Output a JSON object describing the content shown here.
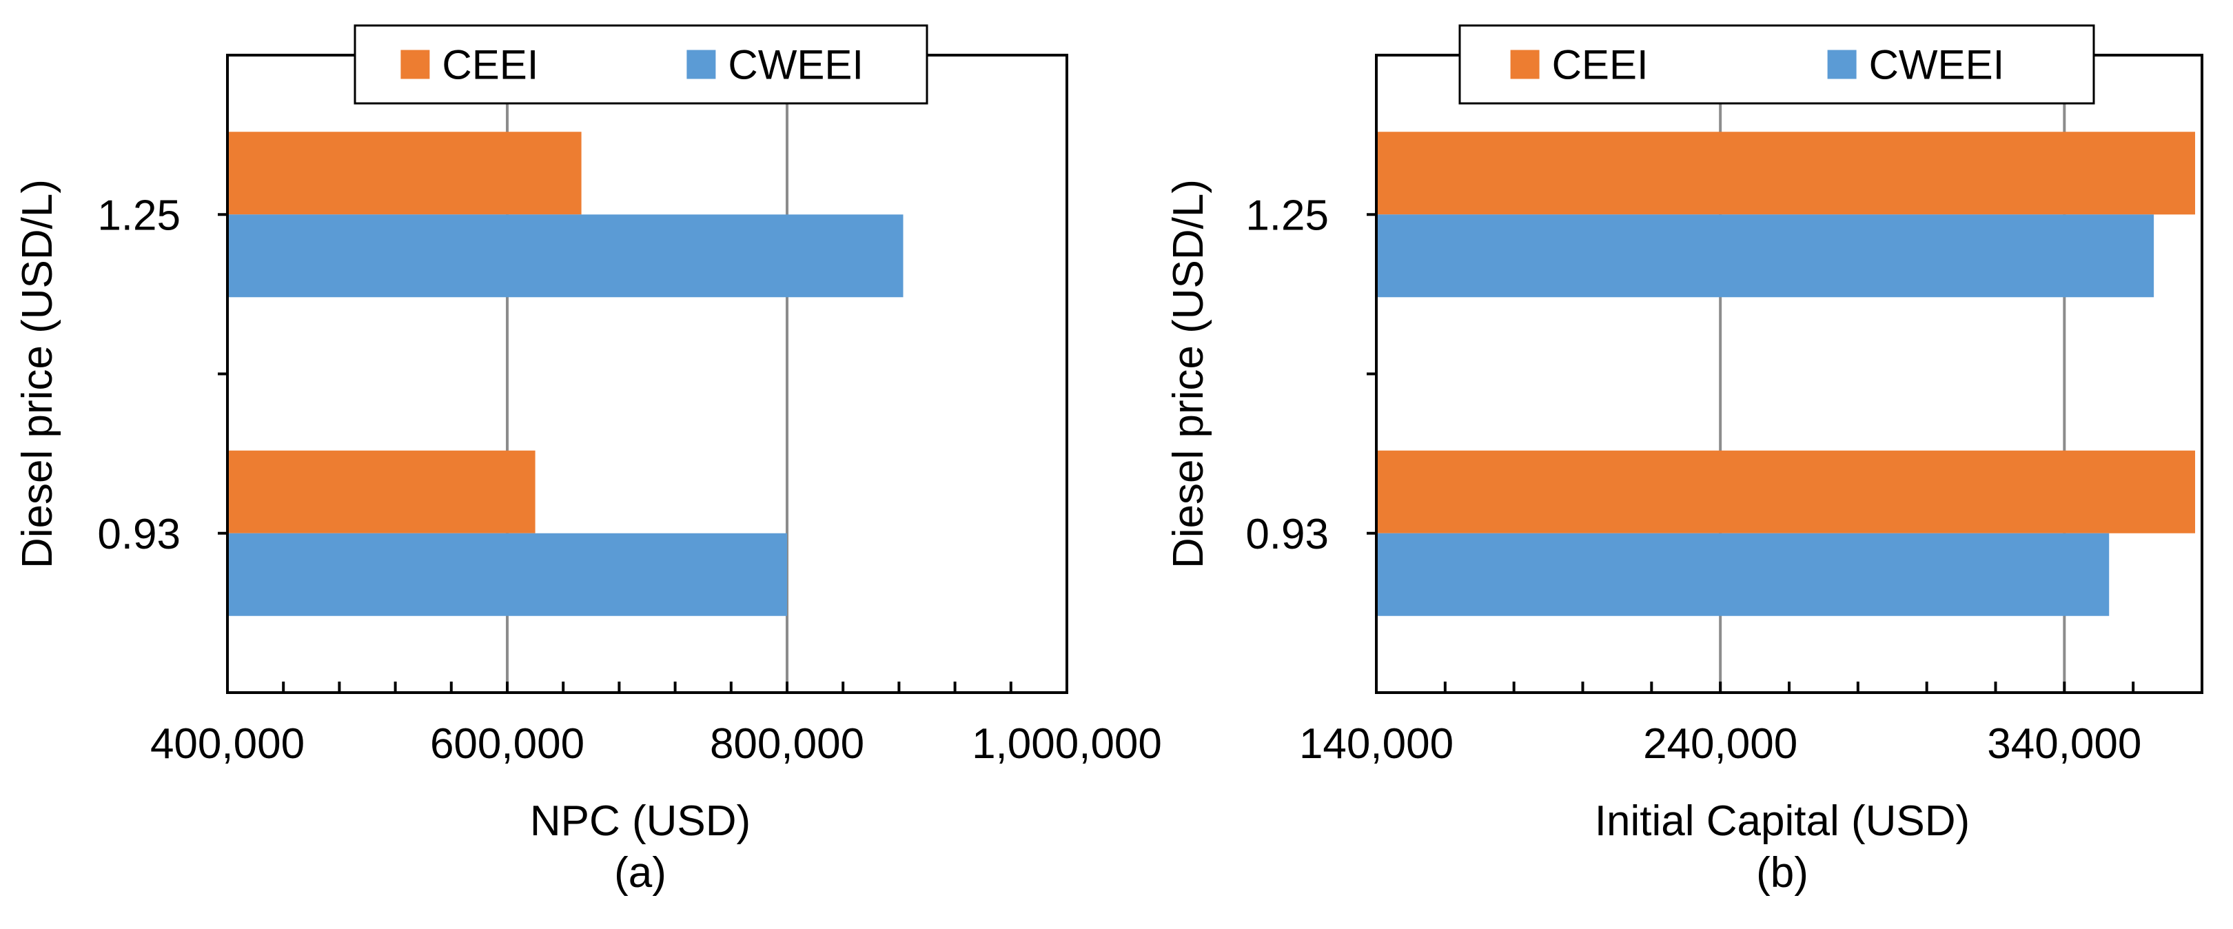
{
  "chart_data": [
    {
      "type": "bar",
      "orientation": "horizontal",
      "panel_label": "(a)",
      "categories": [
        "0.93",
        "1.25"
      ],
      "series": [
        {
          "name": "CEEI",
          "color": "#ED7D31",
          "values": [
            620000,
            653000
          ]
        },
        {
          "name": "CWEEI",
          "color": "#5B9BD5",
          "values": [
            800000,
            883000
          ]
        }
      ],
      "xlabel": "NPC (USD)",
      "ylabel": "Diesel price (USD/L)",
      "xlim": [
        400000,
        1000000
      ],
      "xticks": [
        "400,000",
        "600,000",
        "800,000",
        "1,000,000"
      ],
      "grid": "vertical",
      "legend": "top"
    },
    {
      "type": "bar",
      "orientation": "horizontal",
      "panel_label": "(b)",
      "categories": [
        "0.93",
        "1.25"
      ],
      "series": [
        {
          "name": "CEEI",
          "color": "#ED7D31",
          "values": [
            378000,
            378000
          ]
        },
        {
          "name": "CWEEI",
          "color": "#5B9BD5",
          "values": [
            353000,
            366000
          ]
        }
      ],
      "xlabel": "Initial Capital (USD)",
      "ylabel": "Diesel price (USD/L)",
      "xlim": [
        140000,
        380000
      ],
      "xticks": [
        "140,000",
        "240,000",
        "340,000"
      ],
      "grid": "vertical",
      "legend": "top"
    }
  ]
}
